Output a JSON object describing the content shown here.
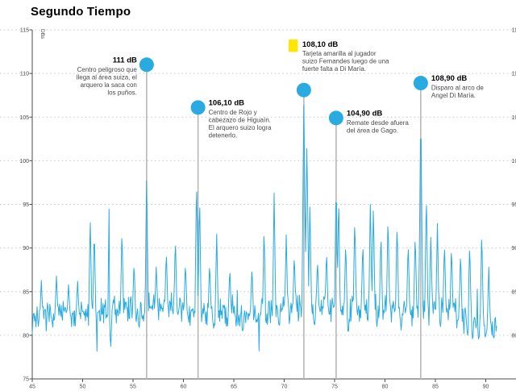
{
  "title": "Segundo Tiempo",
  "chart_data": {
    "type": "line",
    "title": "Segundo Tiempo",
    "xlabel": "",
    "ylabel": "DBs",
    "line_color": "#29ABE2",
    "marker_color": "#29ABE2",
    "yellow_card_color": "#FFE600",
    "grid": "dotted horizontal gridlines every 5 dB",
    "legend": "none",
    "x_axis": {
      "min": 45,
      "max": 92,
      "ticks": [
        45,
        50,
        55,
        60,
        65,
        70,
        75,
        80,
        85,
        90
      ],
      "unit": "match minute"
    },
    "y_axis": {
      "min": 75,
      "max": 115,
      "ticks": [
        115,
        110,
        105,
        100,
        95,
        90,
        85,
        80,
        75
      ],
      "unit": "dB"
    },
    "series_description": "Crowd noise level (dB) during the second half; noisy baseline around 82-84 dB with sharp spikes at key plays",
    "baseline_trend": [
      [
        45,
        81.9
      ],
      [
        47,
        82.5
      ],
      [
        53,
        82.7
      ],
      [
        57,
        83.3
      ],
      [
        63,
        82.7
      ],
      [
        66,
        82.3
      ],
      [
        70,
        83.0
      ],
      [
        75,
        83.0
      ],
      [
        80,
        83.2
      ],
      [
        86,
        82.9
      ],
      [
        88,
        82.0
      ],
      [
        90.2,
        81.4
      ],
      [
        91.1,
        81.0
      ]
    ],
    "spikes": [
      [
        45.9,
        86.3
      ],
      [
        47.4,
        86.8
      ],
      [
        48.6,
        85.8
      ],
      [
        49.5,
        86.2
      ],
      [
        50.75,
        93.6
      ],
      [
        51.15,
        92.3
      ],
      [
        52.7,
        102.5
      ],
      [
        53.9,
        92.3
      ],
      [
        55.1,
        88.4
      ],
      [
        56.35,
        98.7
      ],
      [
        57.3,
        87.8
      ],
      [
        58.3,
        89.8
      ],
      [
        59.2,
        91.3
      ],
      [
        60.2,
        88.4
      ],
      [
        61.3,
        98.4
      ],
      [
        61.6,
        96.3
      ],
      [
        62.6,
        88.4
      ],
      [
        63.3,
        91.6
      ],
      [
        64.6,
        87.8
      ],
      [
        66.8,
        88.0
      ],
      [
        68.0,
        92.6
      ],
      [
        69.0,
        96.3
      ],
      [
        70.2,
        91.5
      ],
      [
        71.0,
        89.4
      ],
      [
        71.95,
        107.6
      ],
      [
        72.25,
        102.4
      ],
      [
        72.55,
        95.5
      ],
      [
        73.3,
        88.8
      ],
      [
        74.2,
        89.8
      ],
      [
        75.15,
        98.1
      ],
      [
        75.4,
        96.2
      ],
      [
        76.1,
        90.8
      ],
      [
        77.0,
        93.7
      ],
      [
        77.8,
        90.8
      ],
      [
        78.55,
        95.8
      ],
      [
        78.85,
        95.0
      ],
      [
        79.6,
        91.8
      ],
      [
        80.3,
        93.8
      ],
      [
        81.2,
        93.1
      ],
      [
        82.3,
        90.8
      ],
      [
        83.0,
        91.8
      ],
      [
        83.55,
        106.0
      ],
      [
        84.1,
        96.6
      ],
      [
        84.55,
        91.8
      ],
      [
        85.2,
        92.8
      ],
      [
        85.9,
        90.8
      ],
      [
        86.6,
        90.4
      ],
      [
        87.5,
        89.7
      ],
      [
        88.4,
        90.8
      ],
      [
        89.6,
        92.3
      ],
      [
        90.3,
        87.8
      ]
    ],
    "dips": [
      [
        52.78,
        78.0
      ],
      [
        55.6,
        80.6
      ],
      [
        63.0,
        80.8
      ],
      [
        65.9,
        80.3
      ],
      [
        69.5,
        81.0
      ],
      [
        73.0,
        81.0
      ],
      [
        76.35,
        79.8
      ],
      [
        79.2,
        81.0
      ],
      [
        81.6,
        80.6
      ],
      [
        85.5,
        81.0
      ],
      [
        88.2,
        80.0
      ],
      [
        88.7,
        79.3
      ],
      [
        89.3,
        79.3
      ],
      [
        90.0,
        80.0
      ],
      [
        90.8,
        79.6
      ]
    ],
    "events": [
      {
        "label": "111 dB",
        "minute": 56.35,
        "db": 111,
        "icon": "circle",
        "text_side": "left",
        "description": "Centro peligroso que llega al área suiza, el arquero la saca con los puños.",
        "desc_lines": [
          "Centro peligroso que",
          "llega al área suiza, el",
          "arquero la saca con",
          "los puños."
        ]
      },
      {
        "label": "106,10 dB",
        "minute": 61.45,
        "db": 106.1,
        "icon": "circle",
        "text_side": "right",
        "description": "Centro de Rojo y cabezazo de Higuaín. El arquero suizo logra detenerlo.",
        "desc_lines": [
          "Centro de Rojo y",
          "cabezazo de Higuaín.",
          "El arquero suizo logra",
          "detenerlo."
        ]
      },
      {
        "label": "108,10 dB",
        "minute": 71.95,
        "db": 108.1,
        "icon": "yellow-card",
        "text_side": "right",
        "description": "Tarjeta amarilla al jugador suizo Fernandes luego de una fuerte falta a Di María.",
        "desc_lines": [
          "Tarjeta amarilla al jugador",
          "suizo Fernandes luego de una",
          "fuerte falta a Di María."
        ]
      },
      {
        "label": "104,90 dB",
        "minute": 75.15,
        "db": 104.9,
        "icon": "circle",
        "text_side": "right",
        "description": "Remate desde afuera del área de Gago.",
        "desc_lines": [
          "Remate desde afuera",
          "del área de Gago."
        ]
      },
      {
        "label": "108,90 dB",
        "minute": 83.55,
        "db": 108.9,
        "icon": "circle",
        "text_side": "right",
        "description": "Disparo al arco de Angel Di María.",
        "desc_lines": [
          "Disparo al arco de",
          "Angel Di María."
        ]
      }
    ]
  }
}
